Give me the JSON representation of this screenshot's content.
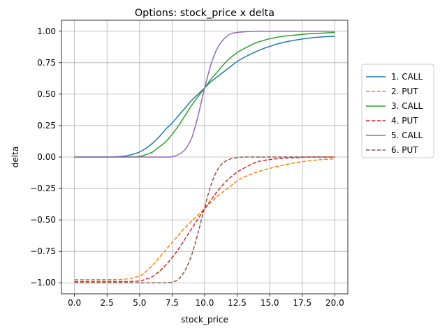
{
  "chart_data": {
    "type": "line",
    "title": "Options: stock_price x delta",
    "xlabel": "stock_price",
    "ylabel": "delta",
    "xlim": [
      -1.0,
      21.0
    ],
    "ylim": [
      -1.0875,
      1.0875
    ],
    "xticks": [
      0.0,
      2.5,
      5.0,
      7.5,
      10.0,
      12.5,
      15.0,
      17.5,
      20.0
    ],
    "xtick_labels": [
      "0.0",
      "2.5",
      "5.0",
      "7.5",
      "10.0",
      "12.5",
      "15.0",
      "17.5",
      "20.0"
    ],
    "yticks": [
      -1.0,
      -0.75,
      -0.5,
      -0.25,
      0.0,
      0.25,
      0.5,
      0.75,
      1.0
    ],
    "ytick_labels": [
      "−1.00",
      "−0.75",
      "−0.50",
      "−0.25",
      "0.00",
      "0.25",
      "0.50",
      "0.75",
      "1.00"
    ],
    "grid": true,
    "legend_position": "outside right",
    "x": [
      0,
      1,
      2,
      3,
      4,
      5,
      5.5,
      6,
      6.5,
      7,
      7.5,
      8,
      8.5,
      9,
      9.5,
      10,
      10.5,
      11,
      11.5,
      12,
      12.5,
      13,
      14,
      15,
      16,
      17,
      18,
      19,
      20
    ],
    "series": [
      {
        "name": "1. CALL",
        "color": "#1f77b4",
        "dash": "solid",
        "values": [
          0.0,
          0.0,
          0.0,
          0.002,
          0.01,
          0.04,
          0.07,
          0.11,
          0.16,
          0.22,
          0.27,
          0.33,
          0.39,
          0.45,
          0.5,
          0.55,
          0.6,
          0.64,
          0.68,
          0.72,
          0.76,
          0.79,
          0.84,
          0.88,
          0.91,
          0.93,
          0.945,
          0.955,
          0.96
        ]
      },
      {
        "name": "2. PUT",
        "color": "#ff7f0e",
        "dash": "dashed",
        "values": [
          -0.975,
          -0.975,
          -0.975,
          -0.975,
          -0.97,
          -0.945,
          -0.91,
          -0.86,
          -0.8,
          -0.74,
          -0.68,
          -0.62,
          -0.56,
          -0.51,
          -0.46,
          -0.41,
          -0.36,
          -0.31,
          -0.27,
          -0.23,
          -0.19,
          -0.16,
          -0.12,
          -0.09,
          -0.065,
          -0.045,
          -0.03,
          -0.02,
          -0.015
        ]
      },
      {
        "name": "3. CALL",
        "color": "#2ca02c",
        "dash": "solid",
        "values": [
          0.0,
          0.0,
          0.0,
          0.0,
          0.0,
          0.005,
          0.02,
          0.04,
          0.08,
          0.12,
          0.18,
          0.25,
          0.33,
          0.41,
          0.48,
          0.55,
          0.62,
          0.68,
          0.74,
          0.79,
          0.83,
          0.86,
          0.91,
          0.94,
          0.96,
          0.97,
          0.98,
          0.985,
          0.99
        ]
      },
      {
        "name": "4. PUT",
        "color": "#d62728",
        "dash": "dashed",
        "values": [
          -0.99,
          -0.99,
          -0.99,
          -0.99,
          -0.99,
          -0.985,
          -0.97,
          -0.95,
          -0.91,
          -0.86,
          -0.8,
          -0.73,
          -0.65,
          -0.57,
          -0.49,
          -0.41,
          -0.34,
          -0.27,
          -0.21,
          -0.16,
          -0.12,
          -0.09,
          -0.04,
          -0.02,
          -0.01,
          -0.005,
          0.0,
          0.0,
          0.0
        ]
      },
      {
        "name": "5. CALL",
        "color": "#9467bd",
        "dash": "solid",
        "values": [
          0.0,
          0.0,
          0.0,
          0.0,
          0.0,
          0.0,
          0.0,
          0.0,
          0.0,
          0.0,
          0.002,
          0.02,
          0.06,
          0.15,
          0.33,
          0.55,
          0.74,
          0.87,
          0.94,
          0.98,
          0.99,
          0.995,
          1.0,
          1.0,
          1.0,
          1.0,
          1.0,
          1.0,
          1.0
        ]
      },
      {
        "name": "6. PUT",
        "color": "#8c564b",
        "dash": "dashed",
        "values": [
          -1.0,
          -1.0,
          -1.0,
          -1.0,
          -1.0,
          -1.0,
          -1.0,
          -1.0,
          -1.0,
          -1.0,
          -0.995,
          -0.97,
          -0.9,
          -0.78,
          -0.6,
          -0.4,
          -0.22,
          -0.1,
          -0.04,
          -0.015,
          -0.005,
          0.0,
          0.0,
          0.0,
          0.0,
          0.0,
          0.0,
          0.0,
          0.0
        ]
      }
    ]
  }
}
